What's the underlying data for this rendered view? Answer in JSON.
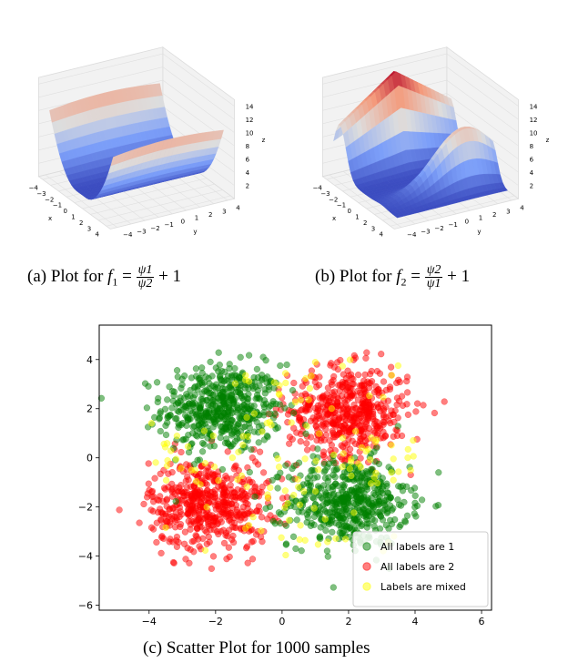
{
  "captions": {
    "a_prefix": "(a) Plot for",
    "a_fn": "f",
    "a_sub": "1",
    "a_num": "ψ1",
    "a_den": "ψ2",
    "a_tail": "+ 1",
    "b_prefix": "(b) Plot for",
    "b_fn": "f",
    "b_sub": "2",
    "b_num": "ψ2",
    "b_den": "ψ1",
    "b_tail": "+ 1",
    "c": "(c) Scatter Plot for 1000 samples"
  },
  "chart_data": [
    {
      "type": "surface",
      "xlabel": "x",
      "ylabel": "y",
      "zlabel": "z",
      "xticks": [
        "−4",
        "−3",
        "−2",
        "−1",
        "0",
        "1",
        "2",
        "3",
        "4"
      ],
      "yticks": [
        "−4",
        "−3",
        "−2",
        "−1",
        "0",
        "1",
        "2",
        "3",
        "4"
      ],
      "zticks": [
        "2",
        "4",
        "6",
        "8",
        "10",
        "12",
        "14"
      ],
      "description_shape": "valley, high at x=±4 edges, flat near 1",
      "zlim": [
        1,
        15
      ],
      "colormap": [
        "#3b4cc0",
        "#dddddd",
        "#b40426"
      ]
    },
    {
      "type": "surface",
      "xlabel": "x",
      "ylabel": "y",
      "zlabel": "z",
      "xticks": [
        "−4",
        "−3",
        "−2",
        "−1",
        "0",
        "1",
        "2",
        "3",
        "4"
      ],
      "yticks": [
        "−4",
        "−3",
        "−2",
        "−1",
        "0",
        "1",
        "2",
        "3",
        "4"
      ],
      "zticks": [
        "2",
        "4",
        "6",
        "8",
        "10",
        "12",
        "14"
      ],
      "zlim": [
        1,
        15
      ],
      "colormap": [
        "#3b4cc0",
        "#dddddd",
        "#b40426"
      ]
    },
    {
      "type": "scatter",
      "xlim": [
        -5.5,
        6.3
      ],
      "ylim": [
        -6.2,
        5.4
      ],
      "xticks": [
        -4,
        -2,
        0,
        2,
        4,
        6
      ],
      "yticks": [
        -6,
        -4,
        -2,
        0,
        2,
        4
      ],
      "clusters": [
        {
          "name": "All labels are 1",
          "color": "#008000",
          "centers": [
            [
              -1.8,
              2.0
            ],
            [
              2.0,
              -1.8
            ]
          ],
          "spread": 0.9
        },
        {
          "name": "All labels are 2",
          "color": "#ff0000",
          "centers": [
            [
              2.0,
              1.9
            ],
            [
              -2.2,
              -1.9
            ]
          ],
          "spread": 0.9
        },
        {
          "name": "Labels are mixed",
          "color": "#ffff00",
          "centers": [
            [
              0.0,
              0.0
            ]
          ],
          "spread": 1.5
        }
      ],
      "legend": [
        {
          "label": "All labels are 1",
          "color": "#008000"
        },
        {
          "label": "All labels are 2",
          "color": "#ff0000"
        },
        {
          "label": "Labels are mixed",
          "color": "#ffff00"
        }
      ],
      "legend_position": "lower-right"
    }
  ]
}
